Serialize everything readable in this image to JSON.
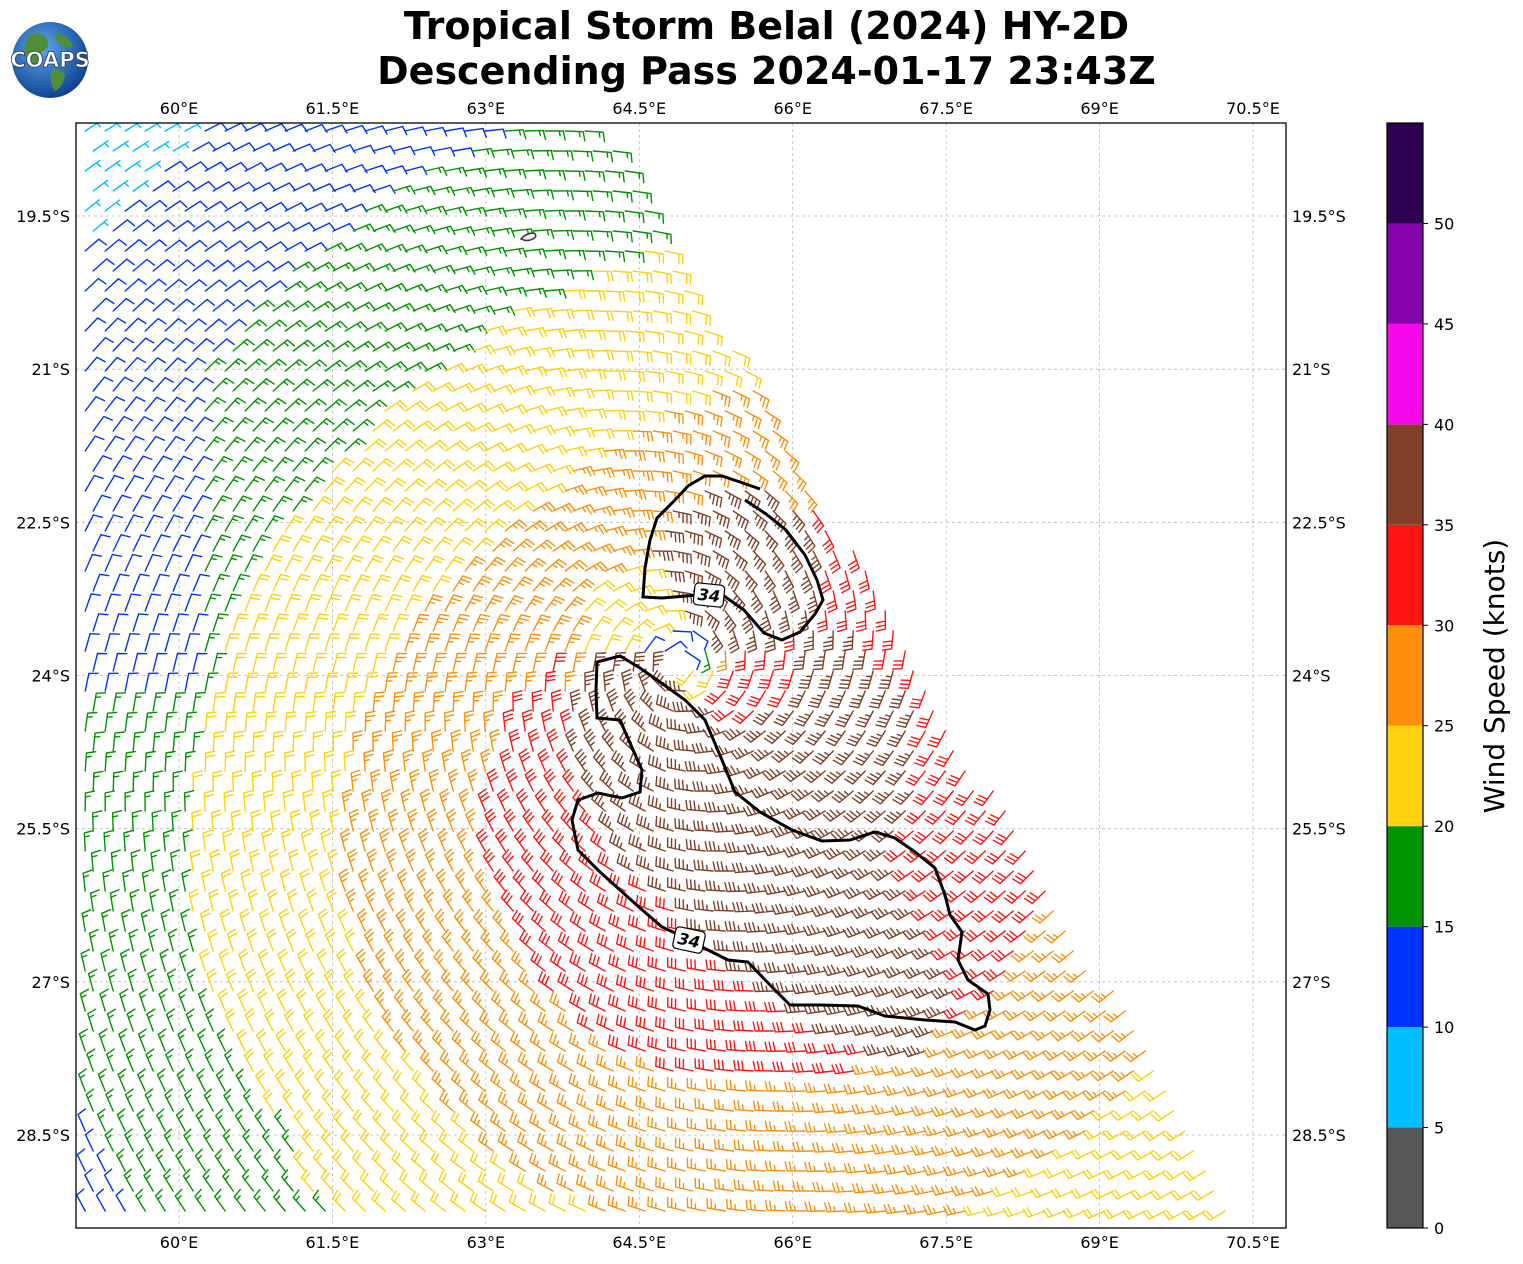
{
  "title": {
    "line1": "Tropical Storm Belal (2024) HY-2D",
    "line2": "Descending Pass 2024-01-17 23:43Z"
  },
  "logo": {
    "text": "COAPS",
    "icon": "globe-logo-icon"
  },
  "map": {
    "lon_ticks": [
      "60°E",
      "61.5°E",
      "63°E",
      "64.5°E",
      "66°E",
      "67.5°E",
      "69°E",
      "70.5°E"
    ],
    "lat_ticks": [
      "19.5°S",
      "21°S",
      "22.5°S",
      "24°S",
      "25.5°S",
      "27°S",
      "28.5°S"
    ],
    "lon_values": [
      60,
      61.5,
      63,
      64.5,
      66,
      67.5,
      69,
      70.5
    ],
    "lat_values": [
      -19.5,
      -21,
      -22.5,
      -24,
      -25.5,
      -27,
      -28.5
    ],
    "storm_center": {
      "lon": 64.9,
      "lat": -23.9
    },
    "contour_label": "34",
    "contour_labels": [
      "34",
      "34"
    ]
  },
  "colorbar": {
    "label": "Wind Speed (knots)",
    "ticks": [
      "0",
      "5",
      "10",
      "15",
      "20",
      "25",
      "30",
      "35",
      "40",
      "45",
      "50"
    ],
    "colors": [
      "#575757",
      "#00bfff",
      "#0033ff",
      "#009400",
      "#ffd10f",
      "#ff8f0a",
      "#ff1414",
      "#82402b",
      "#f707ec",
      "#8603ab",
      "#2d0050"
    ]
  }
}
